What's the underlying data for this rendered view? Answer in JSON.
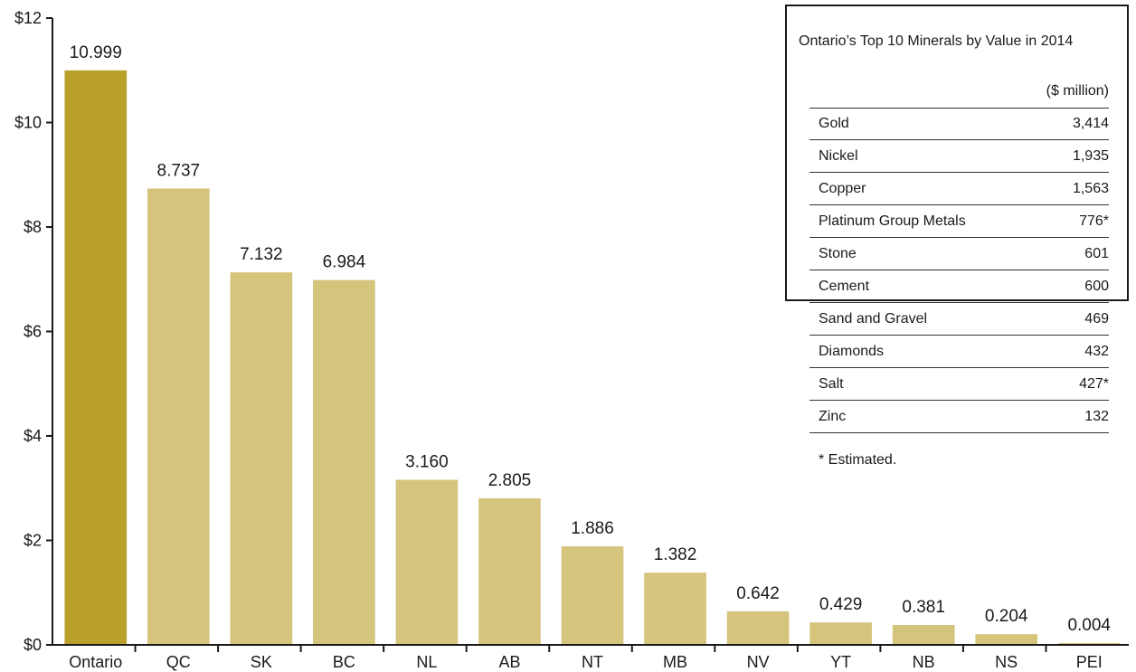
{
  "chart_data": {
    "type": "bar",
    "categories": [
      "Ontario",
      "QC",
      "SK",
      "BC",
      "NL",
      "AB",
      "NT",
      "MB",
      "NV",
      "YT",
      "NB",
      "NS",
      "PEI"
    ],
    "values": [
      10.999,
      8.737,
      7.132,
      6.984,
      3.16,
      2.805,
      1.886,
      1.382,
      0.642,
      0.429,
      0.381,
      0.204,
      0.004
    ],
    "value_labels": [
      "10.999",
      "8.737",
      "7.132",
      "6.984",
      "3.160",
      "2.805",
      "1.886",
      "1.382",
      "0.642",
      "0.429",
      "0.381",
      "0.204",
      "0.004"
    ],
    "y_ticks": [
      0,
      2,
      4,
      6,
      8,
      10,
      12
    ],
    "y_tick_labels": [
      "$0",
      "$2",
      "$4",
      "$6",
      "$8",
      "$10",
      "$12"
    ],
    "ylim": [
      0,
      12
    ],
    "title": "",
    "xlabel": "",
    "ylabel": "",
    "grid": false,
    "highlight_index": 0,
    "colors": {
      "highlight": "#b8a02a",
      "bar": "#d4c47c",
      "axis": "#1a1a1a"
    }
  },
  "table": {
    "title": "Ontario’s Top 10 Minerals by Value in 2014",
    "unit": "($ million)",
    "rows": [
      {
        "name": "Gold",
        "value": "3,414"
      },
      {
        "name": "Nickel",
        "value": "1,935"
      },
      {
        "name": "Copper",
        "value": "1,563"
      },
      {
        "name": "Platinum Group Metals",
        "value": "776*"
      },
      {
        "name": "Stone",
        "value": "601"
      },
      {
        "name": "Cement",
        "value": "600"
      },
      {
        "name": "Sand and Gravel",
        "value": "469"
      },
      {
        "name": "Diamonds",
        "value": "432"
      },
      {
        "name": "Salt",
        "value": "427*"
      },
      {
        "name": "Zinc",
        "value": "132"
      }
    ],
    "note": "* Estimated."
  }
}
